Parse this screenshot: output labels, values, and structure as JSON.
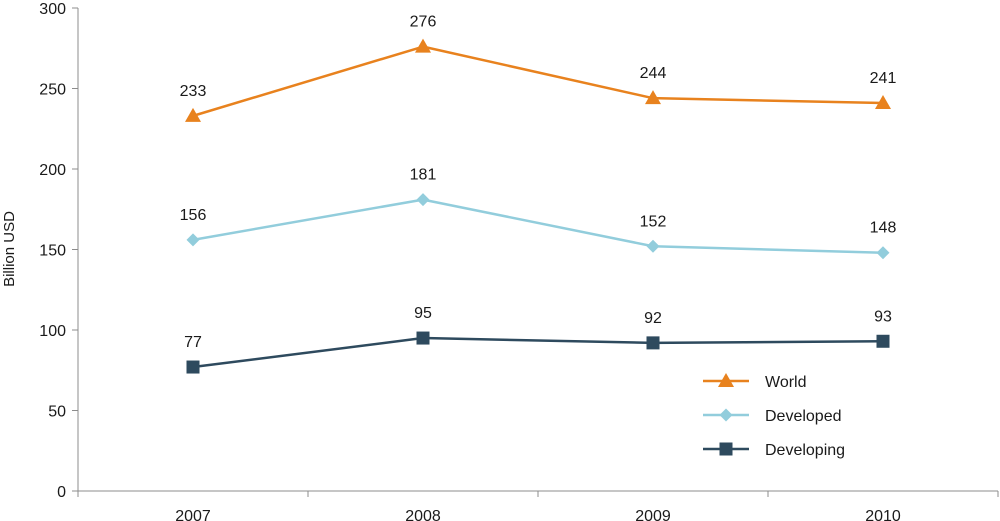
{
  "chart_data": {
    "type": "line",
    "title": "",
    "xlabel": "",
    "ylabel": "Billion USD",
    "categories": [
      "2007",
      "2008",
      "2009",
      "2010"
    ],
    "ylim": [
      0,
      300
    ],
    "yticks": [
      0,
      50,
      100,
      150,
      200,
      250,
      300
    ],
    "grid": false,
    "legend_position": "bottom-right",
    "data_labels": true,
    "series": [
      {
        "name": "World",
        "values": [
          233,
          276,
          244,
          241
        ],
        "color": "#E8821E",
        "marker": "triangle"
      },
      {
        "name": "Developed",
        "values": [
          156,
          181,
          152,
          148
        ],
        "color": "#92CDDC",
        "marker": "diamond"
      },
      {
        "name": "Developing",
        "values": [
          77,
          95,
          92,
          93
        ],
        "color": "#2E4A5E",
        "marker": "square"
      }
    ]
  }
}
